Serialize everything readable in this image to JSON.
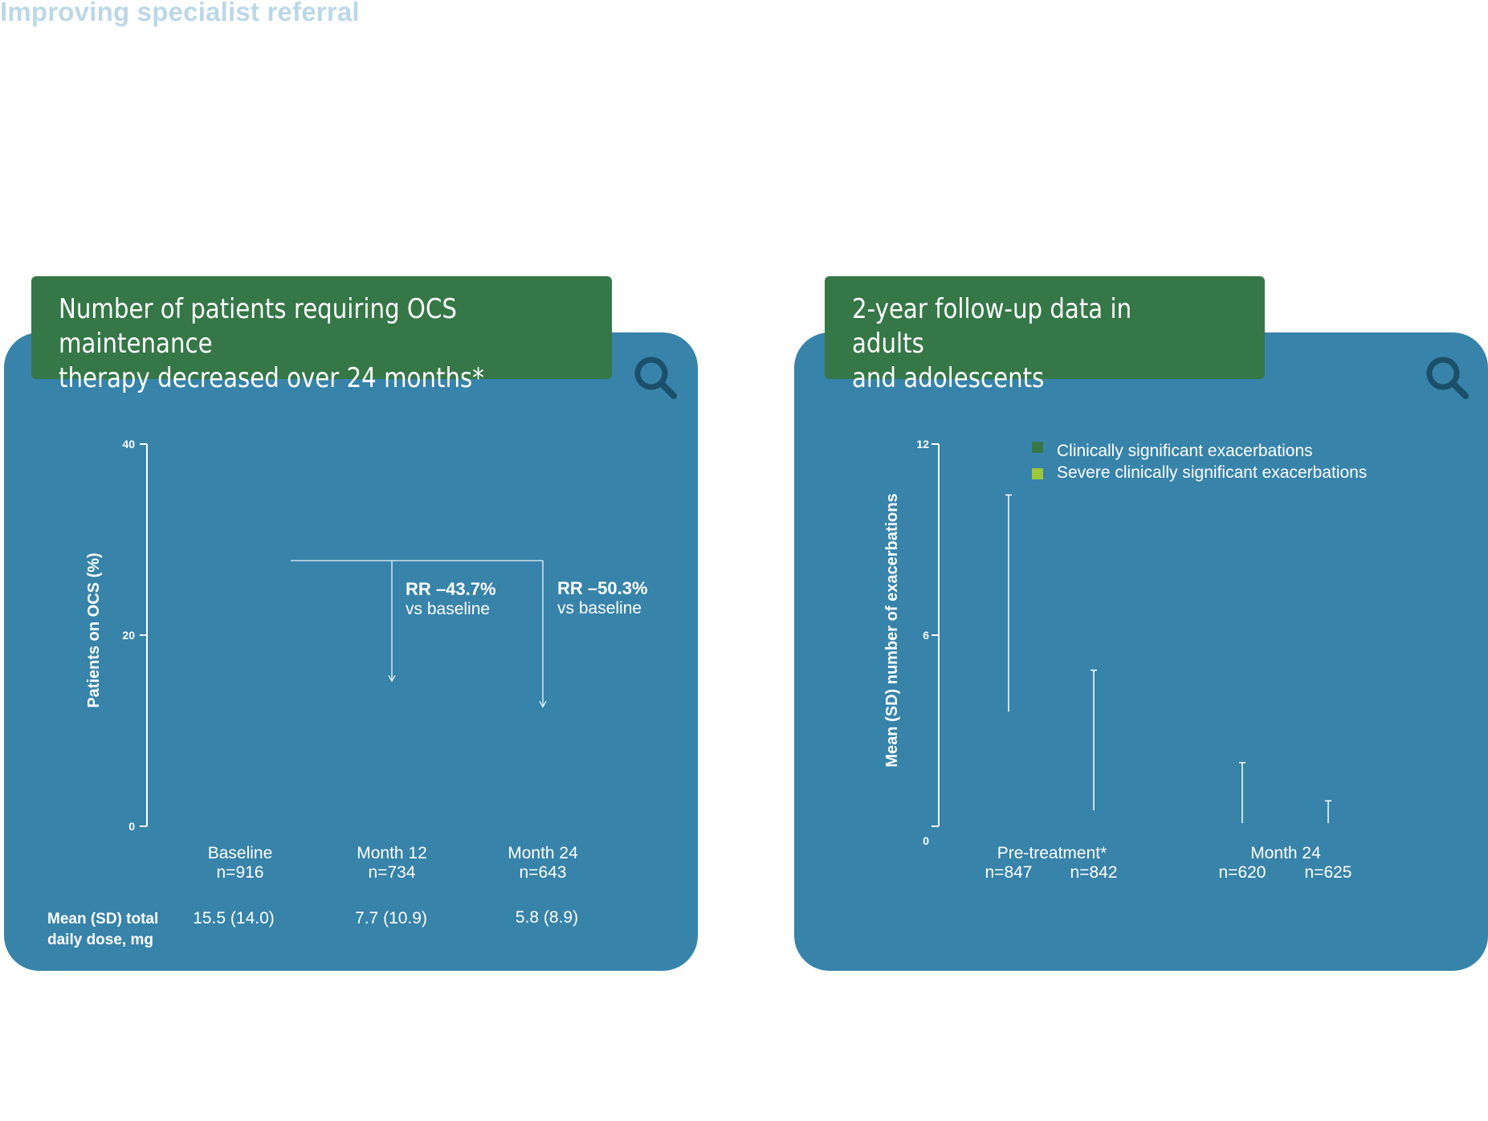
{
  "page": {
    "heading": "Improving specialist referral"
  },
  "panels": [
    {
      "title": "Number of patients requiring OCS maintenance\ntherapy decreased over 24 months*",
      "icon": "search-icon"
    },
    {
      "title": "2-year follow-up data in adults\nand adolescents",
      "icon": "search-icon"
    }
  ],
  "colors": {
    "card": "#3783aa",
    "title_bar": "#357747",
    "series_clinically_significant": "#357747",
    "series_severe": "#9dc63b",
    "icon": "#1c4f69"
  },
  "chart_data": [
    {
      "type": "bar",
      "ylabel": "Patients on OCS (%)",
      "ylim": [
        0,
        40
      ],
      "yticks": [
        "0",
        "20",
        "40"
      ],
      "categories": [
        "Baseline",
        "Month 12",
        "Month 24"
      ],
      "n_labels": [
        "n=916",
        "n=734",
        "n=643"
      ],
      "values": [
        27.8,
        15.2,
        12.5
      ],
      "annotations": [
        {
          "bold": "RR –43.7%",
          "text": "vs baseline"
        },
        {
          "bold": "RR –50.3%",
          "text": "vs baseline"
        }
      ],
      "dose_label": "Mean (SD) total\ndaily dose, mg",
      "dose_values": [
        "15.5 (14.0)",
        "7.7 (10.9)",
        "5.8 (8.9)"
      ]
    },
    {
      "type": "bar",
      "ylabel": "Mean (SD) number of exacerbations",
      "ylim": [
        0,
        12
      ],
      "yticks": [
        "0",
        "6",
        "12"
      ],
      "legend": [
        "Clinically significant exacerbations",
        "Severe clinically significant exacerbations"
      ],
      "legend_position": "top-right",
      "categories": [
        "Pre-treatment*",
        "Month 24"
      ],
      "n_labels": [
        "n=847",
        "n=842",
        "n=620",
        "n=625"
      ],
      "series": [
        {
          "name": "Clinically significant exacerbations",
          "values": [
            3.6,
            0.1
          ],
          "sd": [
            6.8,
            1.9
          ]
        },
        {
          "name": "Severe clinically significant exacerbations",
          "values": [
            0.5,
            0.1
          ],
          "sd": [
            4.4,
            0.7
          ]
        }
      ]
    }
  ]
}
